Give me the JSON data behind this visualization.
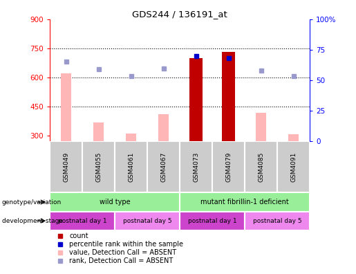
{
  "title": "GDS244 / 136191_at",
  "samples": [
    "GSM4049",
    "GSM4055",
    "GSM4061",
    "GSM4067",
    "GSM4073",
    "GSM4079",
    "GSM4085",
    "GSM4091"
  ],
  "bar_values_absent": [
    620,
    365,
    310,
    410,
    null,
    null,
    415,
    305
  ],
  "bar_values_present": [
    null,
    null,
    null,
    null,
    700,
    730,
    null,
    null
  ],
  "rank_dots_absent": [
    680,
    640,
    605,
    645,
    null,
    null,
    635,
    605
  ],
  "rank_dots_present": [
    null,
    null,
    null,
    null,
    710,
    700,
    null,
    null
  ],
  "ylim_left": [
    270,
    900
  ],
  "ylim_right": [
    0,
    100
  ],
  "yticks_left": [
    300,
    450,
    600,
    750,
    900
  ],
  "yticks_right": [
    0,
    25,
    50,
    75,
    100
  ],
  "bar_color_absent": "#FFB6B6",
  "bar_color_present": "#C00000",
  "dot_color_absent": "#9999CC",
  "dot_color_present": "#0000CC",
  "genotype_groups": [
    {
      "label": "wild type",
      "start": 0,
      "end": 3,
      "color": "#99EE99"
    },
    {
      "label": "mutant fibrillin-1 deficient",
      "start": 4,
      "end": 7,
      "color": "#99EE99"
    }
  ],
  "dev_stage_groups": [
    {
      "label": "postnatal day 1",
      "start": 0,
      "end": 1,
      "color": "#CC44CC"
    },
    {
      "label": "postnatal day 5",
      "start": 2,
      "end": 3,
      "color": "#EE88EE"
    },
    {
      "label": "postnatal day 1",
      "start": 4,
      "end": 5,
      "color": "#CC44CC"
    },
    {
      "label": "postnatal day 5",
      "start": 6,
      "end": 7,
      "color": "#EE88EE"
    }
  ],
  "legend_items": [
    {
      "label": "count",
      "color": "#C00000"
    },
    {
      "label": "percentile rank within the sample",
      "color": "#0000CC"
    },
    {
      "label": "value, Detection Call = ABSENT",
      "color": "#FFB6B6"
    },
    {
      "label": "rank, Detection Call = ABSENT",
      "color": "#9999CC"
    }
  ]
}
